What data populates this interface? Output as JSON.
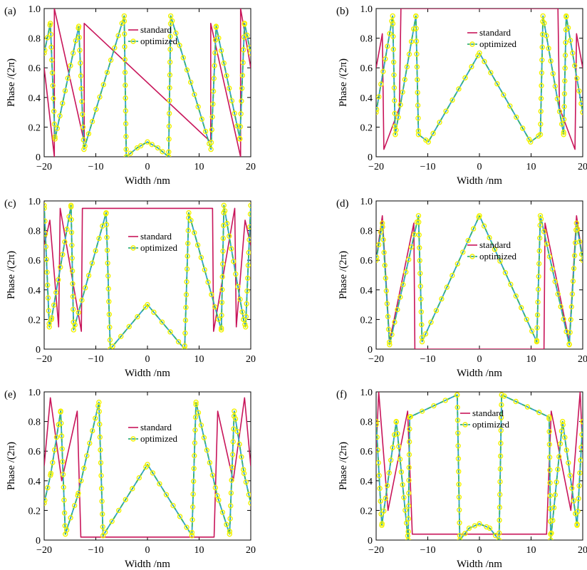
{
  "colors": {
    "standard": "#c8155a",
    "optimized_line": "#2f9fd0",
    "optimized_dash": "#3bb56a",
    "marker": "#f2f200",
    "axis": "#000000"
  },
  "chart_data": [
    {
      "id": "a",
      "type": "line",
      "panel_label": "(a)",
      "title": "",
      "xlabel": "Width /nm",
      "ylabel": "Phase /(2π)",
      "xlim": [
        -20,
        20
      ],
      "ylim": [
        0,
        1
      ],
      "xticks": [
        -20,
        -10,
        0,
        10,
        20
      ],
      "xtick_labels": [
        "−20",
        "−10",
        "0",
        "10",
        "20"
      ],
      "yticks": [
        0,
        0.2,
        0.4,
        0.6,
        0.8,
        1.0
      ],
      "ytick_labels": [
        "0",
        "0.2",
        "0.4",
        "0.6",
        "0.8",
        "1.0"
      ],
      "legend": [
        "standard",
        "optimized"
      ],
      "legend_position": "top-center",
      "grid": false,
      "series": [
        {
          "name": "standard",
          "style": "solid",
          "marker": "none",
          "x": [
            -20,
            -18.03,
            -18.03,
            -12.25,
            -12.25,
            12.25,
            12.25,
            18.03,
            18.03,
            20
          ],
          "y": [
            0.6,
            0.0,
            1.0,
            0.1,
            0.9,
            0.1,
            0.9,
            0.0,
            1.0,
            0.6
          ]
        },
        {
          "name": "optimized",
          "style": "dashed-line",
          "marker": "circle",
          "x": [
            -20,
            -18.8,
            -17.9,
            -13.3,
            -12.3,
            -4.5,
            -4.1,
            -2,
            0,
            2,
            4.1,
            4.5,
            12.3,
            13.3,
            17.9,
            18.8,
            20
          ],
          "y": [
            0.7,
            0.9,
            0.12,
            0.88,
            0.05,
            0.95,
            0.0,
            0.06,
            0.1,
            0.06,
            0.0,
            0.95,
            0.05,
            0.88,
            0.12,
            0.9,
            0.7
          ]
        }
      ]
    },
    {
      "id": "b",
      "type": "line",
      "panel_label": "(b)",
      "title": "",
      "xlabel": "Width /nm",
      "ylabel": "Phase /(2π)",
      "xlim": [
        -20,
        20
      ],
      "ylim": [
        0,
        1
      ],
      "xticks": [
        -20,
        -10,
        0,
        10,
        20
      ],
      "xtick_labels": [
        "−20",
        "−10",
        "0",
        "10",
        "20"
      ],
      "yticks": [
        0,
        0.2,
        0.4,
        0.6,
        0.8,
        1.0
      ],
      "ytick_labels": [
        "0",
        "0.2",
        "0.4",
        "0.6",
        "0.8",
        "1.0"
      ],
      "legend": [
        "standard",
        "optimized"
      ],
      "legend_position": "top-right",
      "grid": false,
      "series": [
        {
          "name": "standard",
          "style": "solid",
          "marker": "none",
          "x": [
            -20,
            -18.8,
            -18.5,
            -15.5,
            -15.2,
            15.2,
            15.5,
            18.5,
            18.8,
            20
          ],
          "y": [
            0.6,
            0.83,
            0.05,
            0.33,
            1.0,
            1.0,
            0.33,
            0.05,
            0.83,
            0.6
          ]
        },
        {
          "name": "optimized",
          "style": "dashed-line",
          "marker": "circle",
          "x": [
            -20,
            -16.8,
            -16.3,
            -12.3,
            -11.8,
            -9.9,
            0,
            9.9,
            11.8,
            12.3,
            16.3,
            16.8,
            20
          ],
          "y": [
            0.3,
            0.95,
            0.15,
            0.95,
            0.15,
            0.1,
            0.7,
            0.1,
            0.15,
            0.95,
            0.15,
            0.95,
            0.3
          ]
        }
      ]
    },
    {
      "id": "c",
      "type": "line",
      "panel_label": "(c)",
      "title": "",
      "xlabel": "Width /nm",
      "ylabel": "Phase /(2π)",
      "xlim": [
        -20,
        20
      ],
      "ylim": [
        0,
        1
      ],
      "xticks": [
        -20,
        -10,
        0,
        10,
        20
      ],
      "xtick_labels": [
        "−20",
        "−10",
        "0",
        "10",
        "20"
      ],
      "yticks": [
        0,
        0.2,
        0.4,
        0.6,
        0.8,
        1.0
      ],
      "ytick_labels": [
        "0",
        "0.2",
        "0.4",
        "0.6",
        "0.8",
        "1.0"
      ],
      "legend": [
        "standard",
        "optimized"
      ],
      "legend_position": "upper-center",
      "grid": false,
      "series": [
        {
          "name": "standard",
          "style": "solid",
          "marker": "none",
          "x": [
            -20,
            -18.9,
            -17.2,
            -16.9,
            -12.8,
            -12.6,
            12.6,
            12.8,
            16.9,
            17.2,
            18.9,
            20
          ],
          "y": [
            0.7,
            0.87,
            0.15,
            0.95,
            0.12,
            0.95,
            0.95,
            0.12,
            0.95,
            0.15,
            0.87,
            0.7
          ]
        },
        {
          "name": "optimized",
          "style": "dashed-line",
          "marker": "circle",
          "x": [
            -20,
            -19,
            -18.6,
            -14.8,
            -14.3,
            -8,
            -7.2,
            0,
            7.2,
            8,
            14.3,
            14.8,
            18.6,
            19,
            20
          ],
          "y": [
            0.97,
            0.15,
            0.2,
            0.97,
            0.13,
            0.92,
            0.0,
            0.3,
            0.0,
            0.92,
            0.13,
            0.97,
            0.2,
            0.15,
            0.97
          ]
        }
      ]
    },
    {
      "id": "d",
      "type": "line",
      "panel_label": "(d)",
      "title": "",
      "xlabel": "Width /nm",
      "ylabel": "Phase /(2π)",
      "xlim": [
        -20,
        20
      ],
      "ylim": [
        0,
        1
      ],
      "xticks": [
        -20,
        -10,
        0,
        10,
        20
      ],
      "xtick_labels": [
        "−20",
        "−10",
        "0",
        "10",
        "20"
      ],
      "yticks": [
        0,
        0.2,
        0.4,
        0.6,
        0.8,
        1.0
      ],
      "ytick_labels": [
        "0",
        "0.2",
        "0.4",
        "0.6",
        "0.8",
        "1.0"
      ],
      "legend": [
        "standard",
        "optimized"
      ],
      "legend_position": "middle-right",
      "grid": false,
      "series": [
        {
          "name": "standard",
          "style": "solid",
          "marker": "none",
          "x": [
            -20,
            -18.8,
            -17.4,
            -12.7,
            -12.5,
            12.5,
            12.7,
            17.4,
            18.8,
            20
          ],
          "y": [
            0.6,
            0.9,
            0.05,
            0.85,
            0.0,
            0.0,
            0.85,
            0.05,
            0.9,
            0.6
          ]
        },
        {
          "name": "optimized",
          "style": "dashed-line",
          "marker": "circle",
          "x": [
            -20,
            -18.8,
            -17.4,
            -11.8,
            -11.1,
            0,
            11.1,
            11.8,
            17.4,
            18.8,
            20
          ],
          "y": [
            0.6,
            0.85,
            0.03,
            0.9,
            0.05,
            0.9,
            0.05,
            0.9,
            0.03,
            0.85,
            0.6
          ]
        }
      ]
    },
    {
      "id": "e",
      "type": "line",
      "panel_label": "(e)",
      "title": "",
      "xlabel": "Width /nm",
      "ylabel": "Phase /(2π)",
      "xlim": [
        -20,
        20
      ],
      "ylim": [
        0,
        1
      ],
      "xticks": [
        -20,
        -10,
        0,
        10,
        20
      ],
      "xtick_labels": [
        "−20",
        "−10",
        "0",
        "10",
        "20"
      ],
      "yticks": [
        0,
        0.2,
        0.4,
        0.6,
        0.8,
        1.0
      ],
      "ytick_labels": [
        "0",
        "0.2",
        "0.4",
        "0.6",
        "0.8",
        "1.0"
      ],
      "legend": [
        "standard",
        "optimized"
      ],
      "legend_position": "upper-center",
      "grid": false,
      "series": [
        {
          "name": "standard",
          "style": "solid",
          "marker": "none",
          "x": [
            -20,
            -18.8,
            -16.6,
            -13.6,
            -12.9,
            12.9,
            13.6,
            16.6,
            18.8,
            20
          ],
          "y": [
            0.5,
            0.96,
            0.4,
            0.87,
            0.02,
            0.02,
            0.87,
            0.4,
            0.96,
            0.5
          ]
        },
        {
          "name": "optimized",
          "style": "dashed-line",
          "marker": "circle",
          "x": [
            -20,
            -18.7,
            -16.8,
            -15.9,
            -13.5,
            -9.4,
            -8.6,
            0,
            8.6,
            9.4,
            13.5,
            15.9,
            16.8,
            18.7,
            20
          ],
          "y": [
            0.25,
            0.45,
            0.87,
            0.04,
            0.3,
            0.93,
            0.03,
            0.51,
            0.03,
            0.93,
            0.3,
            0.04,
            0.87,
            0.45,
            0.25
          ]
        }
      ]
    },
    {
      "id": "f",
      "type": "line",
      "panel_label": "(f)",
      "title": "",
      "xlabel": "Width /nm",
      "ylabel": "Phase /(2π)",
      "xlim": [
        -20,
        20
      ],
      "ylim": [
        0,
        1
      ],
      "xticks": [
        -20,
        -10,
        0,
        10,
        20
      ],
      "xtick_labels": [
        "−20",
        "−10",
        "0",
        "10",
        "20"
      ],
      "yticks": [
        0,
        0.2,
        0.4,
        0.6,
        0.8,
        1.0
      ],
      "ytick_labels": [
        "0",
        "0.2",
        "0.4",
        "0.6",
        "0.8",
        "1.0"
      ],
      "legend": [
        "standard",
        "optimized"
      ],
      "legend_position": "top-center",
      "grid": false,
      "series": [
        {
          "name": "standard",
          "style": "solid",
          "marker": "none",
          "x": [
            -20,
            -19.5,
            -17.7,
            -13.9,
            -13.0,
            13.0,
            13.9,
            17.7,
            19.5,
            20
          ],
          "y": [
            0.6,
            1.0,
            0.2,
            0.87,
            0.04,
            0.04,
            0.87,
            0.2,
            1.0,
            0.6
          ]
        },
        {
          "name": "optimized",
          "style": "dashed-line",
          "marker": "circle",
          "x": [
            -20,
            -18.9,
            -16.1,
            -13.8,
            -13.5,
            -4.3,
            -3.8,
            -2,
            0,
            2,
            3.8,
            4.3,
            13.5,
            13.8,
            16.1,
            18.9,
            20
          ],
          "y": [
            0.8,
            0.1,
            0.8,
            0.0,
            0.83,
            0.98,
            0.0,
            0.08,
            0.11,
            0.08,
            0.0,
            0.98,
            0.83,
            0.0,
            0.8,
            0.1,
            0.8
          ]
        }
      ]
    }
  ]
}
